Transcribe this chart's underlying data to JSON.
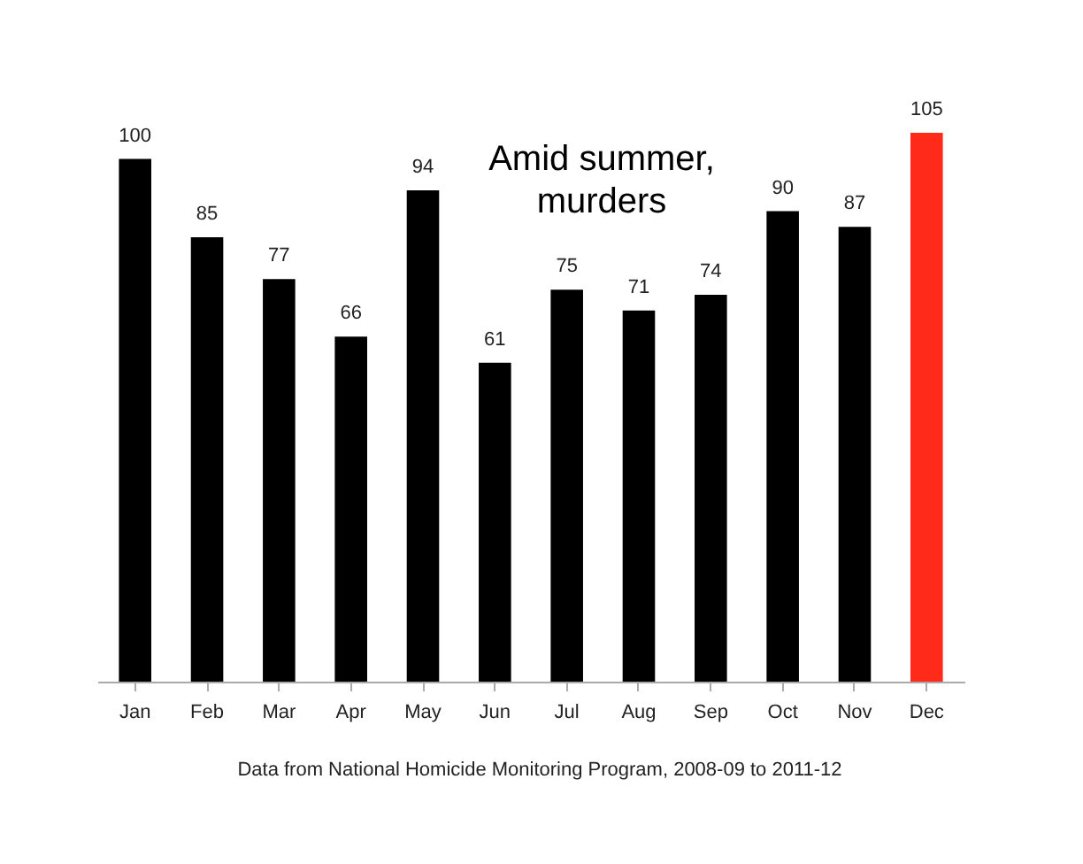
{
  "chart_data": {
    "type": "bar",
    "title": "Amid summer, murders",
    "categories": [
      "Jan",
      "Feb",
      "Mar",
      "Apr",
      "May",
      "Jun",
      "Jul",
      "Aug",
      "Sep",
      "Oct",
      "Nov",
      "Dec"
    ],
    "values": [
      100,
      85,
      77,
      66,
      94,
      61,
      75,
      71,
      74,
      90,
      87,
      105
    ],
    "colors": [
      "#000000",
      "#000000",
      "#000000",
      "#000000",
      "#000000",
      "#000000",
      "#000000",
      "#000000",
      "#000000",
      "#000000",
      "#000000",
      "#ff2a1a"
    ],
    "data_labels": true,
    "annotations": [
      "Data from National Homicide Monitoring Program,  2008-09 to 2011-12"
    ]
  }
}
